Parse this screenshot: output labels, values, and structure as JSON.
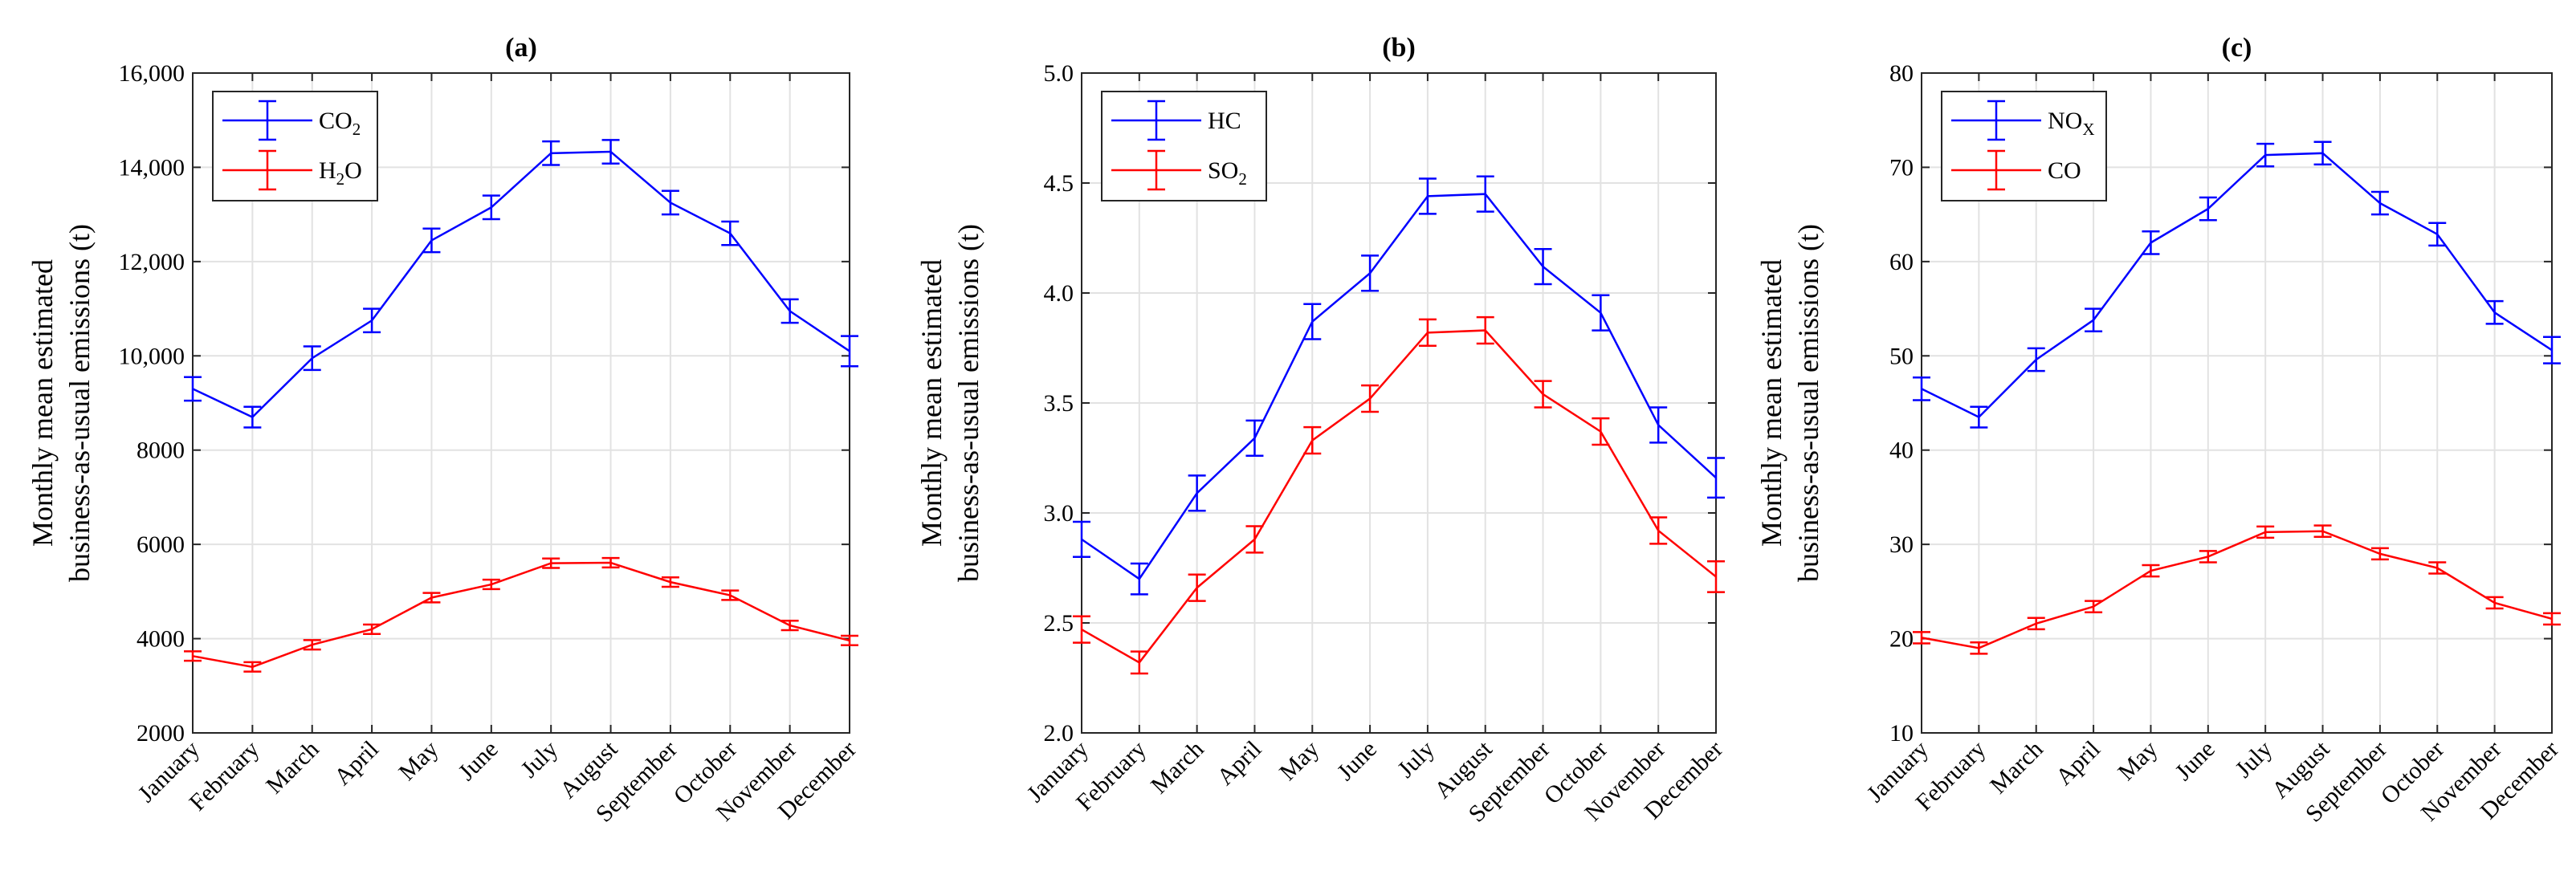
{
  "figure": {
    "chart_data": [
      {
        "type": "line",
        "title": "(a)",
        "ylabel": [
          "Monthly mean estimated",
          "business-as-usual emissions (t)"
        ],
        "xlabel": "",
        "categories": [
          "January",
          "February",
          "March",
          "April",
          "May",
          "June",
          "July",
          "August",
          "September",
          "October",
          "November",
          "December"
        ],
        "ylim": [
          2000,
          16000
        ],
        "yticks": [
          2000,
          4000,
          6000,
          8000,
          10000,
          12000,
          14000,
          16000
        ],
        "ytick_labels": [
          "2000",
          "4000",
          "6000",
          "8000",
          "10,000",
          "12,000",
          "14,000",
          "16,000"
        ],
        "grid": true,
        "legend_position": "top-left",
        "series": [
          {
            "name": "CO",
            "sub": "2",
            "color": "#0000ff",
            "values": [
              9300,
              8700,
              9950,
              10750,
              12450,
              13150,
              14300,
              14330,
              13250,
              12600,
              10950,
              10100
            ],
            "errors": [
              250,
              220,
              250,
              250,
              250,
              250,
              250,
              250,
              250,
              250,
              250,
              320
            ]
          },
          {
            "name": "H",
            "sub": "2",
            "suffix": "O",
            "color": "#ff0000",
            "values": [
              3630,
              3400,
              3870,
              4200,
              4870,
              5150,
              5600,
              5610,
              5200,
              4920,
              4280,
              3960
            ],
            "errors": [
              100,
              100,
              100,
              100,
              100,
              100,
              100,
              100,
              100,
              100,
              100,
              100
            ]
          }
        ]
      },
      {
        "type": "line",
        "title": "(b)",
        "ylabel": [
          "Monthly mean estimated",
          "business-as-usual emissions (t)"
        ],
        "xlabel": "",
        "categories": [
          "January",
          "February",
          "March",
          "April",
          "May",
          "June",
          "July",
          "August",
          "September",
          "October",
          "November",
          "December"
        ],
        "ylim": [
          2.0,
          5.0
        ],
        "yticks": [
          2.0,
          2.5,
          3.0,
          3.5,
          4.0,
          4.5,
          5.0
        ],
        "ytick_labels": [
          "2.0",
          "2.5",
          "3.0",
          "3.5",
          "4.0",
          "4.5",
          "5.0"
        ],
        "grid": true,
        "legend_position": "top-left",
        "series": [
          {
            "name": "HC",
            "color": "#0000ff",
            "values": [
              2.88,
              2.7,
              3.09,
              3.34,
              3.87,
              4.09,
              4.44,
              4.45,
              4.12,
              3.91,
              3.4,
              3.16
            ],
            "errors": [
              0.08,
              0.07,
              0.08,
              0.08,
              0.08,
              0.08,
              0.08,
              0.08,
              0.08,
              0.08,
              0.08,
              0.09
            ]
          },
          {
            "name": "SO",
            "sub": "2",
            "color": "#ff0000",
            "values": [
              2.47,
              2.32,
              2.66,
              2.88,
              3.33,
              3.52,
              3.82,
              3.83,
              3.54,
              3.37,
              2.92,
              2.71
            ],
            "errors": [
              0.06,
              0.05,
              0.06,
              0.06,
              0.06,
              0.06,
              0.06,
              0.06,
              0.06,
              0.06,
              0.06,
              0.07
            ]
          }
        ]
      },
      {
        "type": "line",
        "title": "(c)",
        "ylabel": [
          "Monthly mean estimated",
          "business-as-usual emissions (t)"
        ],
        "xlabel": "",
        "categories": [
          "January",
          "February",
          "March",
          "April",
          "May",
          "June",
          "July",
          "August",
          "September",
          "October",
          "November",
          "December"
        ],
        "ylim": [
          10,
          80
        ],
        "yticks": [
          10,
          20,
          30,
          40,
          50,
          60,
          70,
          80
        ],
        "ytick_labels": [
          "10",
          "20",
          "30",
          "40",
          "50",
          "60",
          "70",
          "80"
        ],
        "grid": true,
        "legend_position": "top-left",
        "series": [
          {
            "name": "NO",
            "sub": "X",
            "color": "#0000ff",
            "values": [
              46.5,
              43.5,
              49.6,
              53.8,
              62.0,
              65.6,
              71.3,
              71.5,
              66.2,
              62.9,
              54.6,
              50.6
            ],
            "errors": [
              1.2,
              1.1,
              1.2,
              1.2,
              1.2,
              1.2,
              1.2,
              1.2,
              1.2,
              1.2,
              1.2,
              1.4
            ]
          },
          {
            "name": "CO",
            "color": "#ff0000",
            "values": [
              20.1,
              19.0,
              21.6,
              23.4,
              27.2,
              28.7,
              31.3,
              31.4,
              29.0,
              27.5,
              23.8,
              22.1
            ],
            "errors": [
              0.6,
              0.6,
              0.6,
              0.6,
              0.6,
              0.6,
              0.6,
              0.6,
              0.6,
              0.6,
              0.6,
              0.6
            ]
          }
        ]
      }
    ]
  }
}
